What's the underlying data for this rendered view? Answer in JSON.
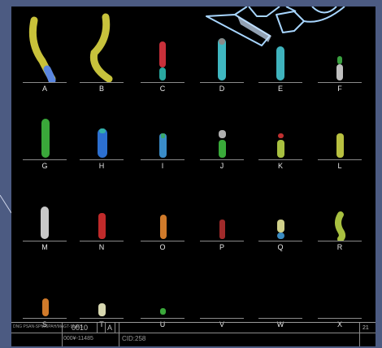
{
  "karyotype": {
    "rows": [
      {
        "cells": [
          {
            "label": "A",
            "colors": [
              "#c9c23a",
              "#e0d84a",
              "#5a86e0"
            ]
          },
          {
            "label": "B",
            "colors": [
              "#c7c23c",
              "#ded650",
              "#8e8a30"
            ]
          },
          {
            "label": "C",
            "colors": [
              "#c8303a",
              "#e04040",
              "#29a8a0"
            ]
          },
          {
            "label": "D",
            "colors": [
              "#3fb7c1",
              "#5ed0d6",
              "#8a8a8a"
            ]
          },
          {
            "label": "E",
            "colors": [
              "#3fb3bd",
              "#2f9ea8",
              "#1f6c70"
            ]
          },
          {
            "label": "F",
            "colors": [
              "#3aa040",
              "#bfbfbf",
              "#7e7e7e"
            ]
          }
        ]
      },
      {
        "cells": [
          {
            "label": "G",
            "colors": [
              "#3aa83a",
              "#2a8a2a",
              "#56c056"
            ]
          },
          {
            "label": "H",
            "colors": [
              "#2c6fd0",
              "#3a86e6",
              "#33b0a8"
            ]
          },
          {
            "label": "I",
            "colors": [
              "#3a8cc8",
              "#3aa86a",
              "#2a6a90"
            ]
          },
          {
            "label": "J",
            "colors": [
              "#b0b0b0",
              "#3aaa3a",
              "#6a6a6a"
            ]
          },
          {
            "label": "K",
            "colors": [
              "#c03030",
              "#a8c040",
              "#7a8a30"
            ]
          },
          {
            "label": "L",
            "colors": [
              "#b8c040",
              "#8aa030",
              "#c8c860"
            ]
          }
        ]
      },
      {
        "cells": [
          {
            "label": "M",
            "colors": [
              "#c8c8c8",
              "#9a9a9a",
              "#dcdcdc"
            ]
          },
          {
            "label": "N",
            "colors": [
              "#c02a2a",
              "#a02020",
              "#e03a3a"
            ]
          },
          {
            "label": "O",
            "colors": [
              "#d07a2a",
              "#b86020",
              "#e08a3a"
            ]
          },
          {
            "label": "P",
            "colors": [
              "#a02a2a",
              "#b8b8b8",
              "#802020"
            ]
          },
          {
            "label": "Q",
            "colors": [
              "#d0d08a",
              "#b0b070",
              "#3a8ac0"
            ]
          },
          {
            "label": "R",
            "colors": [
              "#a8c040",
              "#c8c860",
              "#808a30"
            ]
          }
        ]
      },
      {
        "cells": [
          {
            "label": "S",
            "colors": [
              "#d07a2a",
              "#b86020",
              "#e09a4a"
            ]
          },
          {
            "label": "T",
            "colors": [
              "#d8d8b0",
              "#b0b090",
              "#8a8a6a"
            ]
          },
          {
            "label": "U",
            "colors": [
              "#3aa83a",
              "#2a8a2a",
              "#56c056"
            ]
          },
          {
            "label": "V",
            "colors": []
          },
          {
            "label": "W",
            "colors": []
          },
          {
            "label": "X",
            "colors": []
          }
        ]
      }
    ]
  },
  "info_bar": {
    "left_text": "DNG PSAN-SPM/SPAH/MAGT-SL/E'S",
    "field_1": "0010",
    "field_2": "A",
    "field_3": "000¥-11485",
    "field_4": "CID:258",
    "right_number": "21"
  }
}
